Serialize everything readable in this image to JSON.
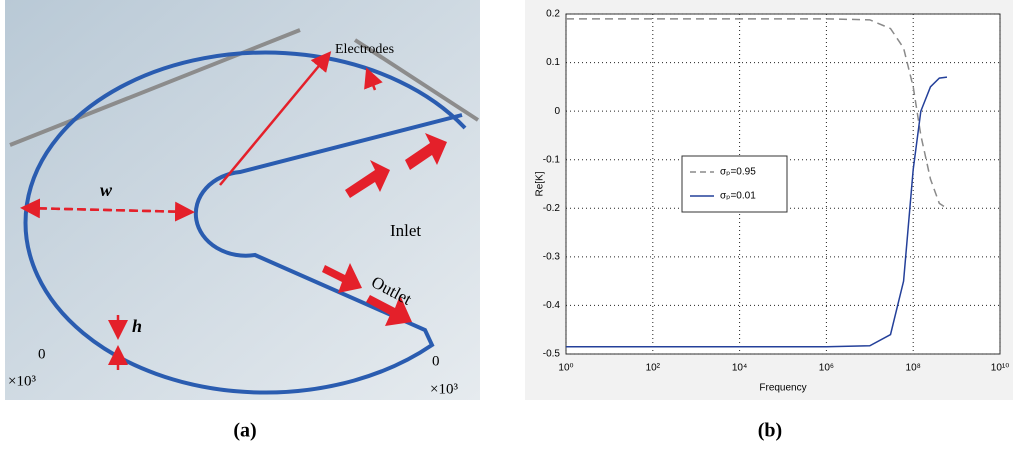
{
  "panel_a": {
    "labels": {
      "electrodes": "Electrodes",
      "w": "w",
      "inlet": "Inlet",
      "outlet": "Outlet",
      "h": "h",
      "zero_left": "0",
      "scale_left": "×10³",
      "zero_right": "0",
      "scale_right": "×10³"
    }
  },
  "captions": [
    "(a)",
    "(b)"
  ],
  "chart_data": {
    "type": "line",
    "x_label": "Frequency",
    "y_label": "Re[K]",
    "log_x": true,
    "grid": true,
    "xlim": [
      1,
      10000000000
    ],
    "ylim": [
      -0.5,
      0.2
    ],
    "xticks": [
      {
        "value": 1,
        "label": "10⁰"
      },
      {
        "value": 100,
        "label": "10²"
      },
      {
        "value": 10000,
        "label": "10⁴"
      },
      {
        "value": 1000000,
        "label": "10⁶"
      },
      {
        "value": 100000000,
        "label": "10⁸"
      },
      {
        "value": 10000000000,
        "label": "10¹⁰"
      }
    ],
    "yticks": [
      0.2,
      0.1,
      0,
      -0.1,
      -0.2,
      -0.3,
      -0.4,
      -0.5
    ],
    "x": [
      1,
      10,
      100,
      1000,
      10000,
      100000,
      1000000,
      10000000,
      30000000,
      60000000,
      100000000,
      150000000,
      250000000,
      400000000,
      600000000
    ],
    "series": [
      {
        "name": "σₚ=0.95",
        "color": "#8a8a8a",
        "line_style": "dashed",
        "values": [
          0.19,
          0.19,
          0.19,
          0.19,
          0.19,
          0.19,
          0.19,
          0.188,
          0.17,
          0.13,
          0.05,
          -0.05,
          -0.14,
          -0.19,
          -0.2
        ]
      },
      {
        "name": "σₚ=0.01",
        "color": "#24409a",
        "line_style": "solid",
        "values": [
          -0.485,
          -0.485,
          -0.485,
          -0.485,
          -0.485,
          -0.485,
          -0.485,
          -0.483,
          -0.46,
          -0.35,
          -0.12,
          0.0,
          0.05,
          0.068,
          0.07
        ]
      }
    ]
  }
}
